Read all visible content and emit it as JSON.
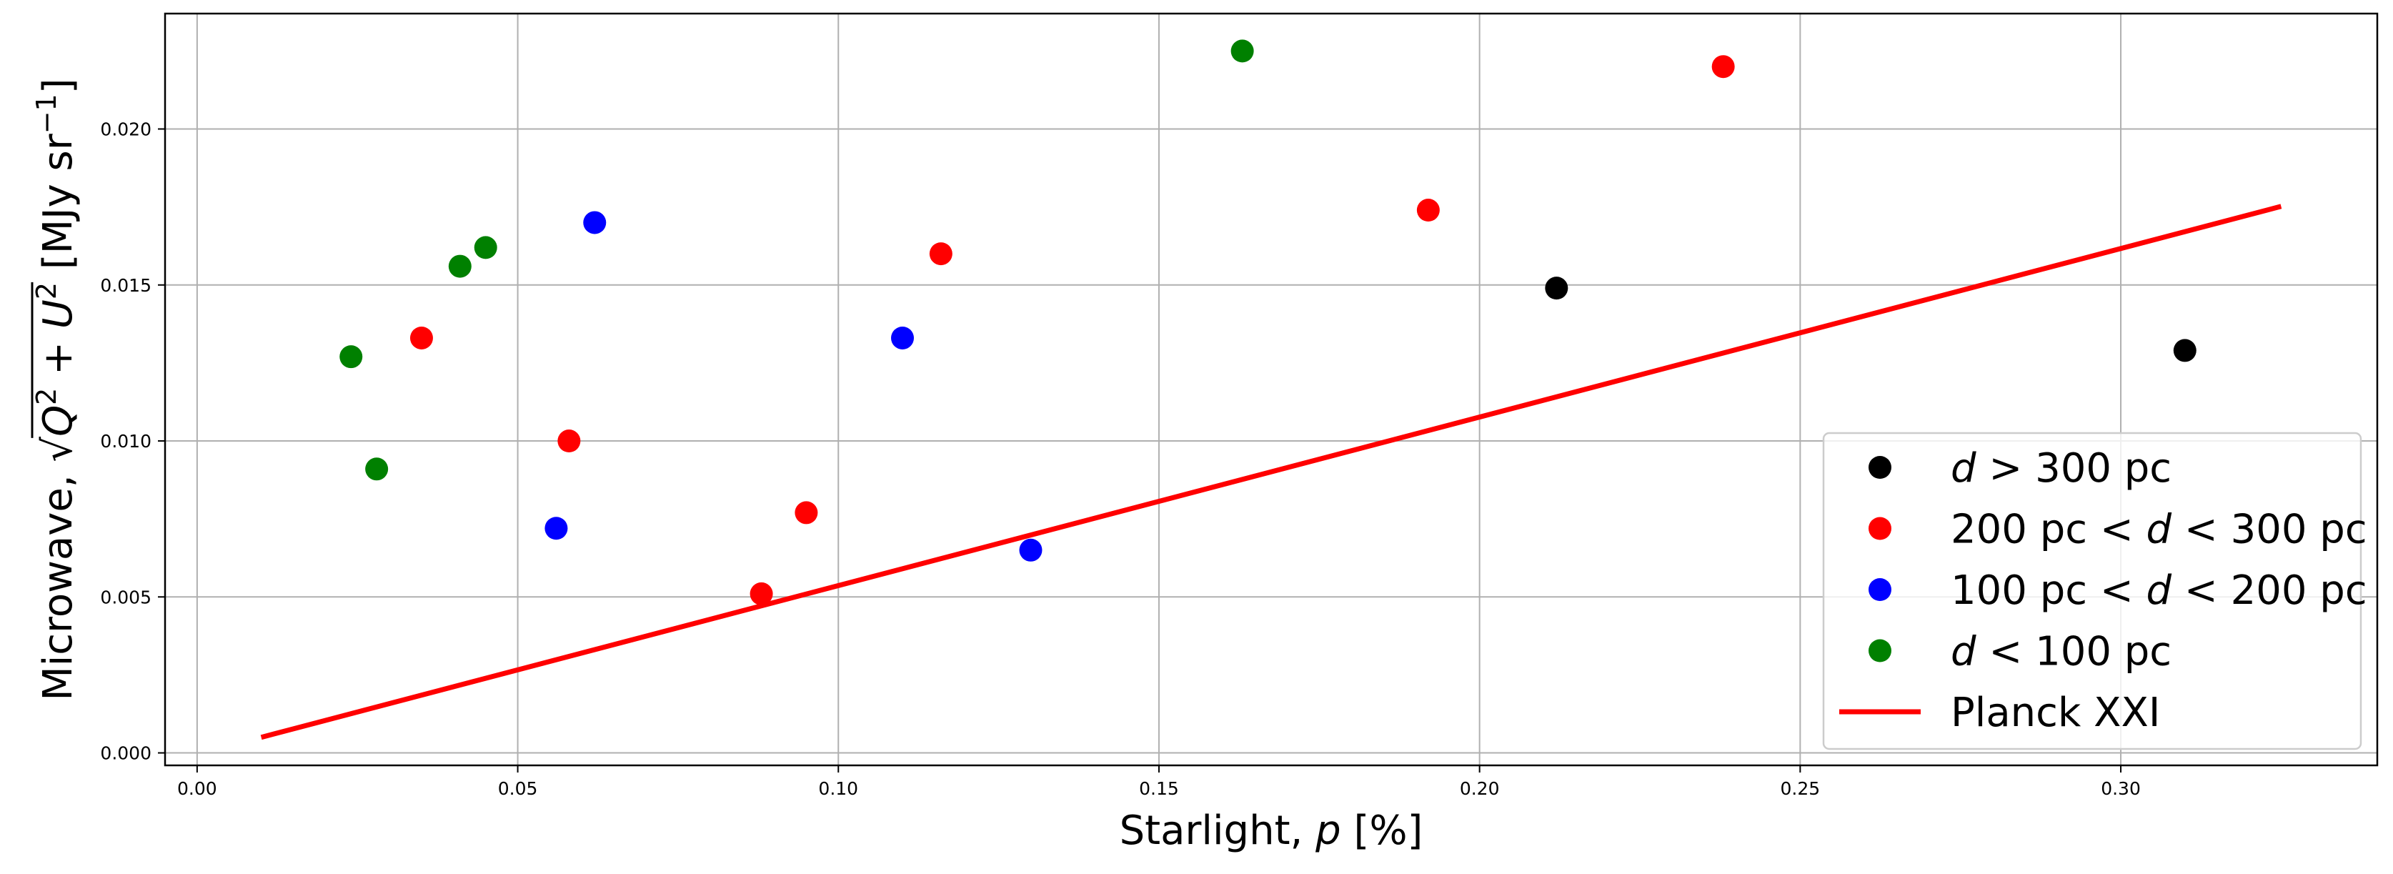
{
  "chart_data": {
    "type": "scatter",
    "title": "",
    "xlabel_prefix": "Starlight, ",
    "xlabel_var": "p",
    "xlabel_suffix": " [%]",
    "ylabel_prefix": "Microwave, ",
    "ylabel_unit": " [MJy sr",
    "ylabel_unit_exp": "−1",
    "ylabel_unit_end": "]",
    "xlim": [
      -0.005,
      0.34
    ],
    "ylim": [
      -0.0004,
      0.0237
    ],
    "grid": true,
    "legend_position": "lower-right",
    "x_ticks": [
      0.0,
      0.05,
      0.1,
      0.15,
      0.2,
      0.25,
      0.3
    ],
    "x_tick_labels": [
      "0.00",
      "0.05",
      "0.10",
      "0.15",
      "0.20",
      "0.25",
      "0.30"
    ],
    "y_ticks": [
      0.0,
      0.005,
      0.01,
      0.015,
      0.02
    ],
    "y_tick_labels": [
      "0.000",
      "0.005",
      "0.010",
      "0.015",
      "0.020"
    ],
    "series": [
      {
        "name": "d > 300 pc",
        "kind": "scatter",
        "color": "#000000",
        "legend_parts": [
          {
            "t": "d",
            "i": true
          },
          {
            "t": " > 300 pc",
            "i": false
          }
        ],
        "points": [
          [
            0.212,
            0.0149
          ],
          [
            0.31,
            0.0129
          ]
        ]
      },
      {
        "name": "200 pc < d < 300 pc",
        "kind": "scatter",
        "color": "#ff0000",
        "legend_parts": [
          {
            "t": "200 pc < ",
            "i": false
          },
          {
            "t": "d",
            "i": true
          },
          {
            "t": " < 300 pc",
            "i": false
          }
        ],
        "points": [
          [
            0.035,
            0.0133
          ],
          [
            0.058,
            0.01
          ],
          [
            0.088,
            0.0051
          ],
          [
            0.095,
            0.0077
          ],
          [
            0.116,
            0.016
          ],
          [
            0.192,
            0.0174
          ],
          [
            0.238,
            0.022
          ]
        ]
      },
      {
        "name": "100 pc < d < 200 pc",
        "kind": "scatter",
        "color": "#0000ff",
        "legend_parts": [
          {
            "t": "100 pc < ",
            "i": false
          },
          {
            "t": "d",
            "i": true
          },
          {
            "t": " < 200 pc",
            "i": false
          }
        ],
        "points": [
          [
            0.056,
            0.0072
          ],
          [
            0.062,
            0.017
          ],
          [
            0.11,
            0.0133
          ],
          [
            0.13,
            0.0065
          ]
        ]
      },
      {
        "name": "d < 100 pc",
        "kind": "scatter",
        "color": "#008000",
        "legend_parts": [
          {
            "t": "d",
            "i": true
          },
          {
            "t": " < 100 pc",
            "i": false
          }
        ],
        "points": [
          [
            0.024,
            0.0127
          ],
          [
            0.028,
            0.0091
          ],
          [
            0.041,
            0.0156
          ],
          [
            0.045,
            0.0162
          ],
          [
            0.163,
            0.0225
          ]
        ]
      },
      {
        "name": "Planck XXI",
        "kind": "line",
        "color": "#ff0000",
        "legend_parts": [
          {
            "t": "Planck XXI",
            "i": false
          }
        ],
        "points": [
          [
            0.01,
            0.0005
          ],
          [
            0.325,
            0.01752
          ]
        ]
      }
    ]
  }
}
